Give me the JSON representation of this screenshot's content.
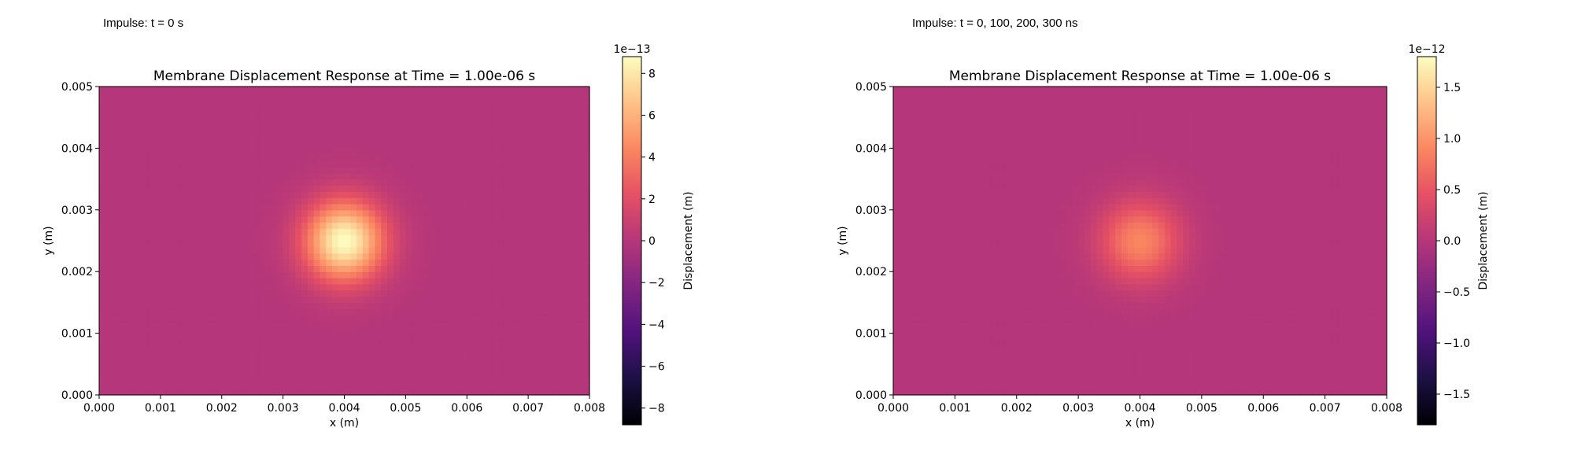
{
  "figure": {
    "annotations": [
      "Impulse: t = 0 s",
      "Impulse: t = 0, 100, 200, 300 ns"
    ]
  },
  "colormap": {
    "name": "magma",
    "stops": [
      "#000004",
      "#1c1044",
      "#4f127b",
      "#812581",
      "#b5367a",
      "#e55064",
      "#fb8761",
      "#fec287",
      "#fcfdbf"
    ]
  },
  "chart_data": [
    {
      "type": "heatmap",
      "title": "Membrane Displacement Response at Time = 1.00e-06 s",
      "xlabel": "x (m)",
      "ylabel": "y (m)",
      "xlim": [
        0,
        0.008
      ],
      "ylim": [
        0,
        0.005
      ],
      "x_ticks": [
        "0.000",
        "0.001",
        "0.002",
        "0.003",
        "0.004",
        "0.005",
        "0.006",
        "0.007",
        "0.008"
      ],
      "y_ticks": [
        "0.000",
        "0.001",
        "0.002",
        "0.003",
        "0.004",
        "0.005"
      ],
      "grid": false,
      "field": {
        "background_value": 0,
        "peak_center": [
          0.004,
          0.0025
        ],
        "peak_value": 8.8e-13,
        "peak_radius": 0.00045
      },
      "colorbar": {
        "label": "Displacement (m)",
        "exponent_label": "1e−13",
        "scale": 1e-13,
        "vmin": -8.8,
        "vmax": 8.8,
        "ticks": [
          -8,
          -6,
          -4,
          -2,
          0,
          2,
          4,
          6,
          8
        ],
        "tick_labels": [
          "−8",
          "−6",
          "−4",
          "−2",
          "0",
          "2",
          "4",
          "6",
          "8"
        ]
      }
    },
    {
      "type": "heatmap",
      "title": "Membrane Displacement Response at Time = 1.00e-06 s",
      "xlabel": "x (m)",
      "ylabel": "y (m)",
      "xlim": [
        0,
        0.008
      ],
      "ylim": [
        0,
        0.005
      ],
      "x_ticks": [
        "0.000",
        "0.001",
        "0.002",
        "0.003",
        "0.004",
        "0.005",
        "0.006",
        "0.007",
        "0.008"
      ],
      "y_ticks": [
        "0.000",
        "0.001",
        "0.002",
        "0.003",
        "0.004",
        "0.005"
      ],
      "grid": false,
      "field": {
        "background_value": 0,
        "peak_center": [
          0.004,
          0.0025
        ],
        "peak_value": 9e-13,
        "peak_radius": 0.00045
      },
      "colorbar": {
        "label": "Displacement (m)",
        "exponent_label": "1e−12",
        "scale": 1e-12,
        "vmin": -1.8,
        "vmax": 1.8,
        "ticks": [
          -1.5,
          -1.0,
          -0.5,
          0.0,
          0.5,
          1.0,
          1.5
        ],
        "tick_labels": [
          "−1.5",
          "−1.0",
          "−0.5",
          "0.0",
          "0.5",
          "1.0",
          "1.5"
        ]
      }
    }
  ]
}
